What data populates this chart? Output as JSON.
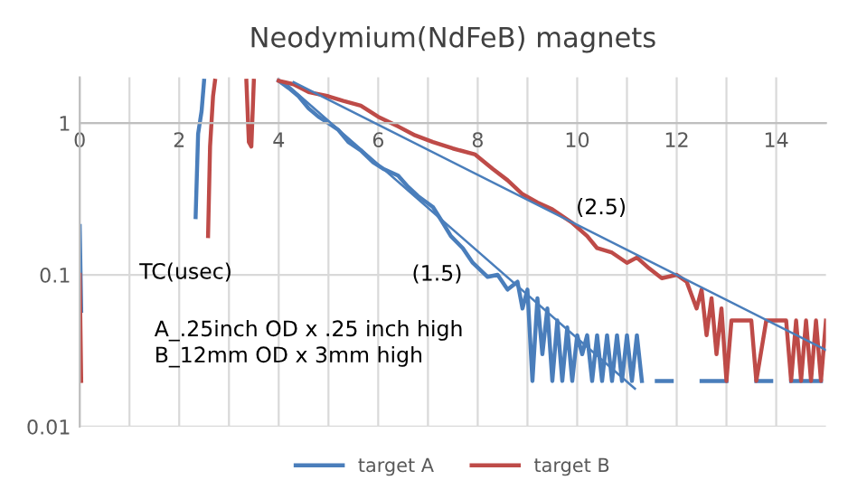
{
  "chart_data": {
    "type": "line",
    "title": "Neodymium(NdFeB) magnets",
    "log": "y",
    "xlim": [
      0,
      15
    ],
    "ylim": [
      0.01,
      2
    ],
    "xticks": [
      0,
      {
        "value": 1,
        "label": null
      },
      2,
      {
        "value": 3,
        "label": null
      },
      4,
      {
        "value": 5,
        "label": null
      },
      6,
      {
        "value": 7,
        "label": null
      },
      8,
      {
        "value": 9,
        "label": null
      },
      10,
      {
        "value": 11,
        "label": null
      },
      12,
      {
        "value": 13,
        "label": null
      },
      14
    ],
    "yticks": [
      0.01,
      0.1,
      1
    ],
    "grid": true,
    "legend": "bottom",
    "line_style": "solid",
    "marker": "none",
    "series": [
      {
        "name": "target A",
        "color": "#4a7ebb",
        "x": [
          0,
          0.03,
          1,
          2.33,
          2.38,
          2.45,
          2.5,
          3,
          4.0,
          4.2,
          4.4,
          4.6,
          4.8,
          5.0,
          5.2,
          5.4,
          5.65,
          5.9,
          6.1,
          6.4,
          6.6,
          6.8,
          7.1,
          7.3,
          7.46,
          7.7,
          7.9,
          8.2,
          8.4,
          8.6,
          8.8,
          8.9,
          9.0,
          9.1,
          9.2,
          9.3,
          9.4,
          9.5,
          9.6,
          9.7,
          9.8,
          9.9,
          10.0,
          10.1,
          10.2,
          10.3,
          10.4,
          10.5,
          10.6,
          10.7,
          10.8,
          10.9,
          11.0,
          11.1,
          11.2,
          11.3,
          11.45,
          11.6,
          11.9,
          12.2,
          12.5,
          13.0,
          13.3,
          13.6,
          13.9,
          14.1,
          14.3,
          14.9
        ],
        "values": [
          0.21,
          0.058,
          null,
          0.24,
          0.85,
          1.2,
          1.9,
          null,
          1.9,
          1.7,
          1.5,
          1.25,
          1.1,
          1.0,
          0.9,
          0.75,
          0.66,
          0.55,
          0.5,
          0.45,
          0.38,
          0.33,
          0.28,
          0.22,
          0.18,
          0.15,
          0.12,
          0.097,
          0.1,
          0.08,
          0.09,
          0.06,
          0.08,
          0.02,
          0.07,
          0.03,
          0.06,
          0.02,
          0.05,
          0.02,
          0.045,
          0.02,
          0.04,
          0.03,
          0.04,
          0.02,
          0.04,
          0.02,
          0.04,
          0.02,
          0.04,
          0.02,
          0.04,
          0.02,
          0.04,
          0.02,
          null,
          0.02,
          0.02,
          null,
          0.02,
          0.02,
          null,
          0.02,
          0.02,
          null,
          0.02,
          0.02
        ]
      },
      {
        "name": "target B",
        "color": "#be4b48",
        "x": [
          0,
          0.03,
          1,
          2.58,
          2.62,
          2.68,
          2.72,
          3,
          3.35,
          3.4,
          3.45,
          3.5,
          3.7,
          4.0,
          4.3,
          4.6,
          5.0,
          5.3,
          5.65,
          6.0,
          6.4,
          6.74,
          7.1,
          7.5,
          7.95,
          8.3,
          8.6,
          8.9,
          9.2,
          9.5,
          9.9,
          10.2,
          10.4,
          10.7,
          11.0,
          11.2,
          11.45,
          11.7,
          12.0,
          12.2,
          12.4,
          12.5,
          12.6,
          12.7,
          12.8,
          12.9,
          13.0,
          13.1,
          13.3,
          13.5,
          13.6,
          13.8,
          14.0,
          14.2,
          14.3,
          14.4,
          14.5,
          14.6,
          14.7,
          14.8,
          14.9,
          15.0
        ],
        "values": [
          0.1,
          0.02,
          null,
          0.18,
          0.7,
          1.5,
          1.9,
          null,
          1.9,
          0.75,
          0.7,
          1.9,
          null,
          1.9,
          1.8,
          1.6,
          1.5,
          1.4,
          1.3,
          1.1,
          0.95,
          0.83,
          0.75,
          0.68,
          0.62,
          0.5,
          0.42,
          0.34,
          0.3,
          0.27,
          0.22,
          0.18,
          0.15,
          0.14,
          0.12,
          0.13,
          0.11,
          0.095,
          0.1,
          0.09,
          0.06,
          0.08,
          0.04,
          0.07,
          0.03,
          0.06,
          0.02,
          0.05,
          0.05,
          0.05,
          0.02,
          0.05,
          0.05,
          0.05,
          0.02,
          0.05,
          0.02,
          0.05,
          0.02,
          0.05,
          0.02,
          0.05
        ]
      },
      {
        "type": "line",
        "color": "#4a7ebb",
        "x": [
          4.2,
          11.16
        ],
        "values": [
          1.75,
          0.0178
        ]
      },
      {
        "type": "line",
        "color": "#4a7ebb",
        "x": [
          4.3,
          15
        ],
        "values": [
          1.86,
          0.032
        ]
      }
    ],
    "annotations": [
      "TC(usec)",
      "A_.25inch OD x .25 inch high",
      "B_12mm OD x 3mm high",
      "(1.5)",
      "(2.5)"
    ]
  }
}
